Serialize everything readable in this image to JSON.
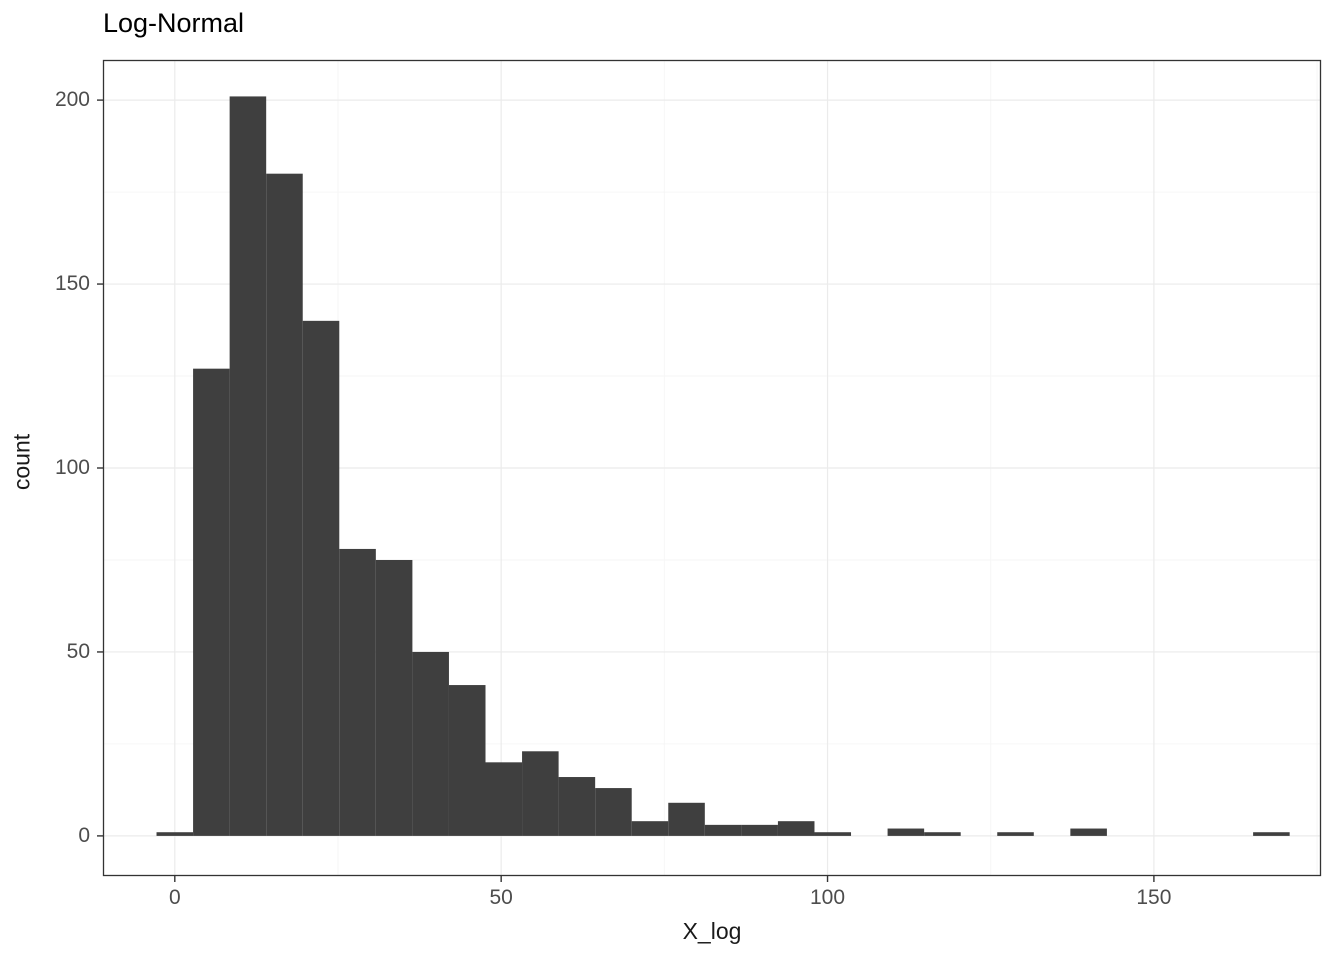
{
  "figure": {
    "title": "Log-Normal"
  },
  "chart_data": {
    "type": "bar",
    "subtype": "histogram",
    "title": "Log-Normal",
    "xlabel": "X_log",
    "ylabel": "count",
    "legend": false,
    "grid": "major+minor",
    "bin_width": 5.6,
    "x": [
      0,
      5.6,
      11.2,
      16.8,
      22.4,
      28,
      33.6,
      39.2,
      44.8,
      50.4,
      56,
      61.6,
      67.2,
      72.8,
      78.4,
      84,
      89.6,
      95.2,
      100.8,
      106.4,
      112,
      117.6,
      123.2,
      128.8,
      134.4,
      140,
      145.6,
      151.2,
      156.8,
      162.4,
      168
    ],
    "counts": [
      1,
      127,
      201,
      180,
      140,
      78,
      75,
      50,
      41,
      20,
      23,
      16,
      13,
      4,
      9,
      3,
      3,
      4,
      1,
      0,
      2,
      1,
      0,
      1,
      0,
      2,
      0,
      0,
      0,
      0,
      1
    ],
    "x_ticks": [
      0,
      50,
      100,
      150
    ],
    "y_ticks": [
      0,
      50,
      100,
      150,
      200
    ],
    "x_minor_ticks": [
      25,
      75,
      125,
      175
    ],
    "y_minor_ticks": [
      25,
      75,
      125,
      175
    ],
    "x_domain": [
      -11,
      175.6
    ],
    "y_domain": [
      -10.9,
      210.9
    ],
    "colors": {
      "bar": "#3f3f3f",
      "grid_major": "#ebebeb",
      "grid_minor": "#f6f6f6",
      "panel_border": "#333333",
      "tick_mark": "#333333",
      "tick_label": "#4d4d4d",
      "axis_label": "#1a1a1a",
      "title": "#000000",
      "background": "#ffffff"
    }
  }
}
